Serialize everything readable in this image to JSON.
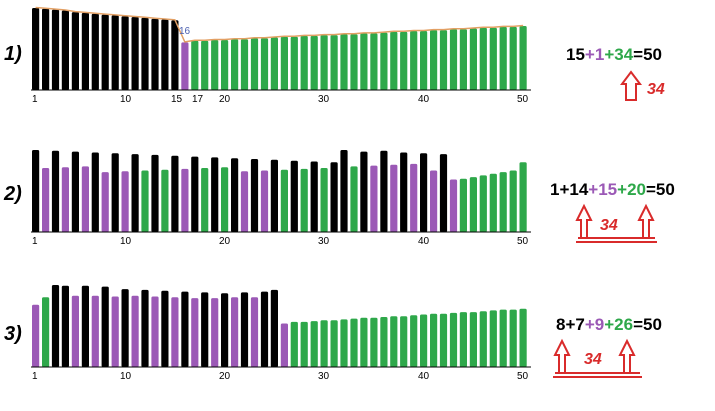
{
  "colors": {
    "black": "#000000",
    "purple": "#9b59b6",
    "green": "#2ea84a",
    "envelope": "#e3a064",
    "red": "#d92b2b",
    "axis": "#000000"
  },
  "tick_values": [
    1,
    10,
    20,
    30,
    40,
    50
  ],
  "rows": [
    {
      "label": "1)",
      "ticks": [
        "1",
        "10",
        "15",
        "17",
        "20",
        "30",
        "40",
        "50"
      ],
      "marker_label": "16",
      "equation": [
        {
          "text": "15",
          "color": "black"
        },
        {
          "text": "+1",
          "color": "purple"
        },
        {
          "text": "+34",
          "color": "green"
        },
        {
          "text": "=50",
          "color": "black"
        }
      ],
      "arrow_label": "34"
    },
    {
      "label": "2)",
      "ticks": [
        "1",
        "10",
        "20",
        "30",
        "40",
        "50"
      ],
      "equation": [
        {
          "text": "1+14",
          "color": "black"
        },
        {
          "text": "+15",
          "color": "purple"
        },
        {
          "text": "+20",
          "color": "green"
        },
        {
          "text": "=50",
          "color": "black"
        }
      ],
      "arrow_label": "34"
    },
    {
      "label": "3)",
      "ticks": [
        "1",
        "10",
        "20",
        "30",
        "40",
        "50"
      ],
      "equation": [
        {
          "text": "8+7",
          "color": "black"
        },
        {
          "text": "+9",
          "color": "purple"
        },
        {
          "text": "+26",
          "color": "green"
        },
        {
          "text": "=50",
          "color": "black"
        }
      ],
      "arrow_label": "34"
    }
  ],
  "chart_data": [
    {
      "type": "bar",
      "categories": [
        "1",
        "2",
        "3",
        "4",
        "5",
        "6",
        "7",
        "8",
        "9",
        "10",
        "11",
        "12",
        "13",
        "14",
        "15",
        "16",
        "17",
        "18",
        "19",
        "20",
        "21",
        "22",
        "23",
        "24",
        "25",
        "26",
        "27",
        "28",
        "29",
        "30",
        "31",
        "32",
        "33",
        "34",
        "35",
        "36",
        "37",
        "38",
        "39",
        "40",
        "41",
        "42",
        "43",
        "44",
        "45",
        "46",
        "47",
        "48",
        "49",
        "50"
      ],
      "values": [
        100,
        99,
        98,
        97,
        95,
        94,
        93,
        92,
        91,
        90,
        89,
        88,
        87,
        86,
        85,
        58,
        60,
        60,
        61,
        61,
        62,
        62,
        63,
        63,
        64,
        65,
        65,
        66,
        66,
        67,
        67,
        68,
        68,
        69,
        69,
        70,
        71,
        71,
        72,
        72,
        73,
        73,
        74,
        74,
        75,
        76,
        76,
        77,
        77,
        78
      ],
      "bar_colors": [
        "black",
        "black",
        "black",
        "black",
        "black",
        "black",
        "black",
        "black",
        "black",
        "black",
        "black",
        "black",
        "black",
        "black",
        "black",
        "purple",
        "green",
        "green",
        "green",
        "green",
        "green",
        "green",
        "green",
        "green",
        "green",
        "green",
        "green",
        "green",
        "green",
        "green",
        "green",
        "green",
        "green",
        "green",
        "green",
        "green",
        "green",
        "green",
        "green",
        "green",
        "green",
        "green",
        "green",
        "green",
        "green",
        "green",
        "green",
        "green",
        "green",
        "green"
      ],
      "ylim": [
        0,
        100
      ]
    },
    {
      "type": "bar",
      "categories": [
        "1",
        "2",
        "3",
        "4",
        "5",
        "6",
        "7",
        "8",
        "9",
        "10",
        "11",
        "12",
        "13",
        "14",
        "15",
        "16",
        "17",
        "18",
        "19",
        "20",
        "21",
        "22",
        "23",
        "24",
        "25",
        "26",
        "27",
        "28",
        "29",
        "30",
        "31",
        "32",
        "33",
        "34",
        "35",
        "36",
        "37",
        "38",
        "39",
        "40",
        "41",
        "42",
        "43",
        "44",
        "45",
        "46",
        "47",
        "48",
        "49",
        "50"
      ],
      "values": [
        100,
        78,
        99,
        79,
        98,
        80,
        97,
        73,
        96,
        74,
        95,
        75,
        94,
        76,
        93,
        77,
        92,
        78,
        91,
        79,
        90,
        74,
        89,
        75,
        88,
        76,
        87,
        77,
        86,
        78,
        85,
        100,
        80,
        98,
        81,
        99,
        82,
        97,
        83,
        96,
        75,
        95,
        64,
        65,
        67,
        69,
        71,
        73,
        75,
        85
      ],
      "bar_colors": [
        "black",
        "purple",
        "black",
        "purple",
        "black",
        "purple",
        "black",
        "purple",
        "black",
        "purple",
        "black",
        "green",
        "black",
        "green",
        "black",
        "purple",
        "black",
        "green",
        "black",
        "green",
        "black",
        "purple",
        "black",
        "purple",
        "black",
        "green",
        "black",
        "green",
        "black",
        "green",
        "black",
        "black",
        "green",
        "black",
        "purple",
        "black",
        "purple",
        "black",
        "purple",
        "black",
        "purple",
        "black",
        "purple",
        "green",
        "green",
        "green",
        "green",
        "green",
        "green",
        "green"
      ],
      "ylim": [
        0,
        100
      ]
    },
    {
      "type": "bar",
      "categories": [
        "1",
        "2",
        "3",
        "4",
        "5",
        "6",
        "7",
        "8",
        "9",
        "10",
        "11",
        "12",
        "13",
        "14",
        "15",
        "16",
        "17",
        "18",
        "19",
        "20",
        "21",
        "22",
        "23",
        "24",
        "25",
        "26",
        "27",
        "28",
        "29",
        "30",
        "31",
        "32",
        "33",
        "34",
        "35",
        "36",
        "37",
        "38",
        "39",
        "40",
        "41",
        "42",
        "43",
        "44",
        "45",
        "46",
        "47",
        "48",
        "49",
        "50"
      ],
      "values": [
        76,
        85,
        100,
        99,
        87,
        99,
        87,
        98,
        86,
        95,
        87,
        94,
        86,
        93,
        85,
        92,
        84,
        91,
        84,
        90,
        85,
        91,
        85,
        92,
        94,
        53,
        55,
        55,
        56,
        57,
        57,
        58,
        59,
        60,
        60,
        61,
        62,
        62,
        63,
        64,
        65,
        65,
        66,
        67,
        67,
        68,
        69,
        70,
        70,
        71
      ],
      "bar_colors": [
        "purple",
        "green",
        "black",
        "black",
        "purple",
        "black",
        "purple",
        "black",
        "purple",
        "black",
        "purple",
        "black",
        "purple",
        "black",
        "purple",
        "black",
        "purple",
        "black",
        "purple",
        "black",
        "purple",
        "black",
        "purple",
        "black",
        "black",
        "purple",
        "green",
        "green",
        "green",
        "green",
        "green",
        "green",
        "green",
        "green",
        "green",
        "green",
        "green",
        "green",
        "green",
        "green",
        "green",
        "green",
        "green",
        "green",
        "green",
        "green",
        "green",
        "green",
        "green",
        "green"
      ],
      "ylim": [
        0,
        100
      ]
    }
  ]
}
